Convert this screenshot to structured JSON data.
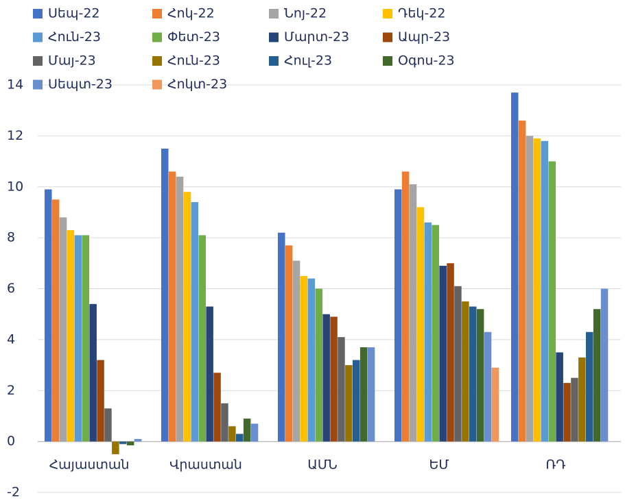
{
  "chart_data": {
    "type": "bar",
    "categories": [
      "Հայաստան",
      "Վրաստան",
      "ԱՄՆ",
      "ԵՄ",
      "ՌԴ"
    ],
    "series": [
      {
        "name": "Սեպ-22",
        "color": "#4472c4",
        "values": [
          9.9,
          11.5,
          8.2,
          9.9,
          13.7
        ]
      },
      {
        "name": "Հոկ-22",
        "color": "#ed7d31",
        "values": [
          9.5,
          10.6,
          7.7,
          10.6,
          12.6
        ]
      },
      {
        "name": "Նոյ-22",
        "color": "#a5a5a5",
        "values": [
          8.8,
          10.4,
          7.1,
          10.1,
          12.0
        ]
      },
      {
        "name": "Դեկ-22",
        "color": "#ffc000",
        "values": [
          8.3,
          9.8,
          6.5,
          9.2,
          11.9
        ]
      },
      {
        "name": "Հուն-23",
        "color": "#5b9bd5",
        "values": [
          8.1,
          9.4,
          6.4,
          8.6,
          11.8
        ]
      },
      {
        "name": "Փետ-23",
        "color": "#70ad47",
        "values": [
          8.1,
          8.1,
          6.0,
          8.5,
          11.0
        ]
      },
      {
        "name": "Մարտ-23",
        "color": "#264478",
        "values": [
          5.4,
          5.3,
          5.0,
          6.9,
          3.5
        ]
      },
      {
        "name": "Ապր-23",
        "color": "#9e480e",
        "values": [
          3.2,
          2.7,
          4.9,
          7.0,
          2.3
        ]
      },
      {
        "name": "Մայ-23",
        "color": "#636363",
        "values": [
          1.3,
          1.5,
          4.1,
          6.1,
          2.5
        ]
      },
      {
        "name": "Հուն-23",
        "color": "#997300",
        "values": [
          -0.5,
          0.6,
          3.0,
          5.5,
          3.3
        ]
      },
      {
        "name": "Հուլ-23",
        "color": "#255e91",
        "values": [
          -0.1,
          0.3,
          3.2,
          5.3,
          4.3
        ]
      },
      {
        "name": "Օգոս-23",
        "color": "#43682b",
        "values": [
          -0.15,
          0.9,
          3.7,
          5.2,
          5.2
        ]
      },
      {
        "name": "Սեպտ-23",
        "color": "#698ed0",
        "values": [
          0.1,
          0.7,
          3.7,
          4.3,
          6.0
        ]
      },
      {
        "name": "Հոկտ-23",
        "color": "#f1975a",
        "values": [
          null,
          null,
          null,
          2.9,
          null
        ]
      }
    ],
    "ylim": [
      -2,
      14
    ],
    "yticks": [
      -2,
      0,
      2,
      4,
      6,
      8,
      10,
      12,
      14
    ],
    "grid": true
  }
}
